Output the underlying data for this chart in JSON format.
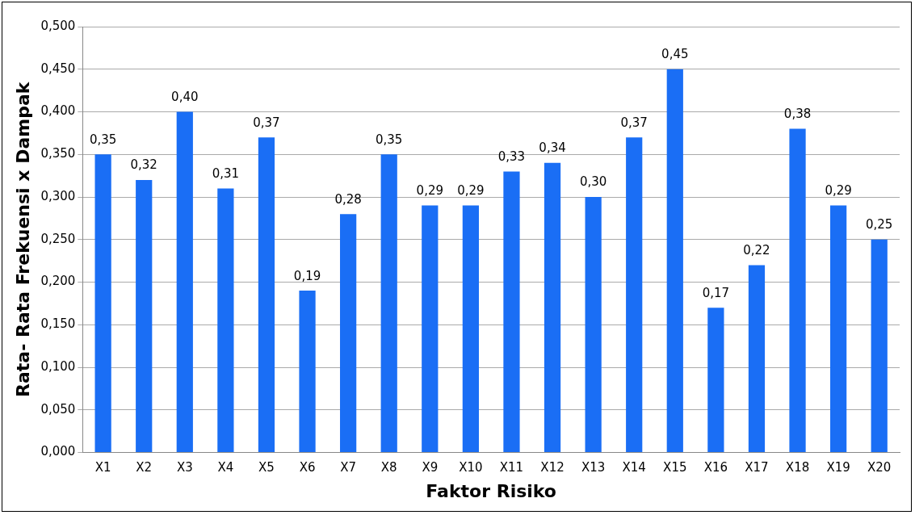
{
  "chart_data": {
    "type": "bar",
    "xlabel": "Faktor Risiko",
    "ylabel": "Rata- Rata Frekuensi x Dampak",
    "categories": [
      "X1",
      "X2",
      "X3",
      "X4",
      "X5",
      "X6",
      "X7",
      "X8",
      "X9",
      "X10",
      "X11",
      "X12",
      "X13",
      "X14",
      "X15",
      "X16",
      "X17",
      "X18",
      "X19",
      "X20"
    ],
    "values": [
      0.35,
      0.32,
      0.4,
      0.31,
      0.37,
      0.19,
      0.28,
      0.35,
      0.29,
      0.29,
      0.33,
      0.34,
      0.3,
      0.37,
      0.45,
      0.17,
      0.22,
      0.38,
      0.29,
      0.25
    ],
    "value_labels": [
      "0,35",
      "0,32",
      "0,40",
      "0,31",
      "0,37",
      "0,19",
      "0,28",
      "0,35",
      "0,29",
      "0,29",
      "0,33",
      "0,34",
      "0,30",
      "0,37",
      "0,45",
      "0,17",
      "0,22",
      "0,38",
      "0,29",
      "0,25"
    ],
    "color": "#1a6ef5",
    "ylim": [
      0,
      0.5
    ],
    "yticks": [
      {
        "value": 0,
        "label": "0,000"
      },
      {
        "value": 0.05,
        "label": "0,050"
      },
      {
        "value": 0.1,
        "label": "0,100"
      },
      {
        "value": 0.15,
        "label": "0,150"
      },
      {
        "value": 0.2,
        "label": "0,200"
      },
      {
        "value": 0.25,
        "label": "0,250"
      },
      {
        "value": 0.3,
        "label": "0,300"
      },
      {
        "value": 0.35,
        "label": "0,350"
      },
      {
        "value": 0.4,
        "label": "0,400"
      },
      {
        "value": 0.45,
        "label": "0,450"
      },
      {
        "value": 0.5,
        "label": "0,500"
      }
    ],
    "grid": "y"
  }
}
